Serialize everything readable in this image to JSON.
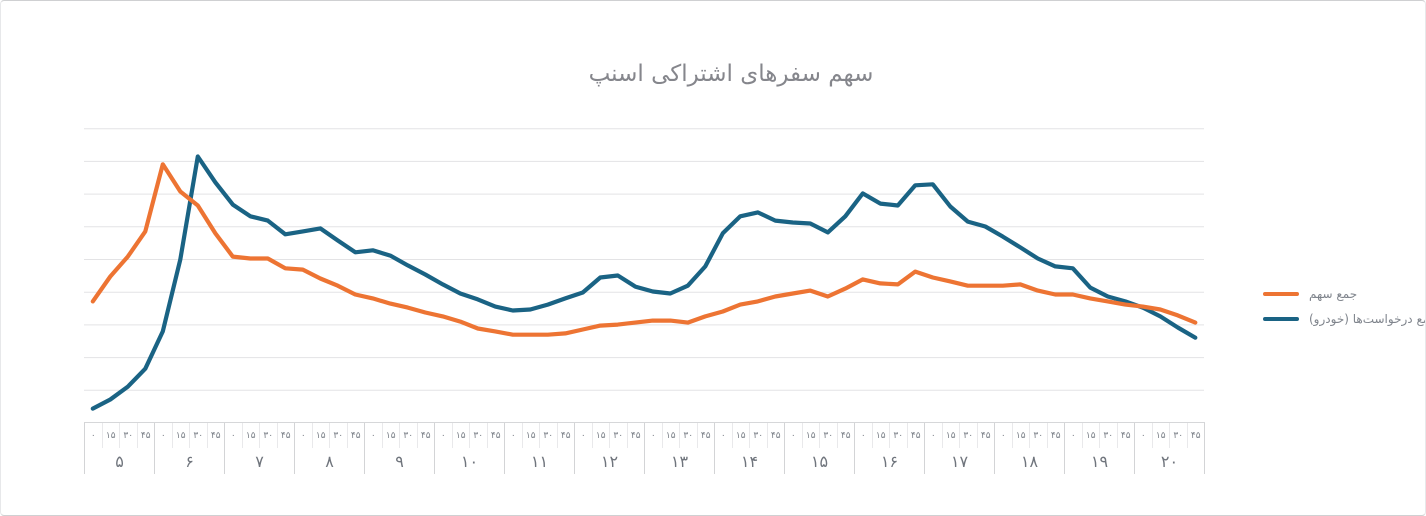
{
  "card": {
    "title": "سهم سفرهای اشتراکی اسنپ"
  },
  "legend": {
    "items": [
      {
        "label": "جمع سهم",
        "color": "#ed7433",
        "series": "share"
      },
      {
        "label": "جمع درخواست‌ها (خودرو)",
        "color": "#1a6384",
        "series": "requests"
      }
    ]
  },
  "colors": {
    "share_line": "#ed7433",
    "requests_line": "#1a6384",
    "gridline": "#e3e3e5",
    "title_text": "#85868c",
    "axis_text": "#70757d"
  },
  "chart_data": {
    "type": "line",
    "title": "سهم سفرهای اشتراکی اسنپ",
    "xlabel": "",
    "ylabel": "",
    "y_axis_labels_visible": false,
    "ylim": [
      0,
      100
    ],
    "gridlines": [
      10,
      20,
      30,
      40,
      50,
      60,
      70,
      80,
      90
    ],
    "legend_position": "right",
    "x_axis": {
      "hours": [
        "۵",
        "۶",
        "۷",
        "۸",
        "۹",
        "۱۰",
        "۱۱",
        "۱۲",
        "۱۳",
        "۱۴",
        "۱۵",
        "۱۶",
        "۱۷",
        "۱۸",
        "۱۹",
        "۲۰"
      ],
      "minutes": [
        "۰",
        "۱۵",
        "۳۰",
        "۴۵"
      ]
    },
    "series": [
      {
        "name": "جمع سهم",
        "color": "#ed7433",
        "values": [
          37.2,
          44.8,
          50.9,
          58.6,
          79.1,
          70.8,
          66.5,
          58.0,
          50.9,
          50.3,
          50.3,
          47.3,
          46.9,
          44.2,
          42.0,
          39.3,
          38.1,
          36.5,
          35.3,
          33.8,
          32.6,
          31.0,
          28.9,
          28.0,
          27.0,
          27.0,
          27.0,
          27.4,
          28.6,
          29.8,
          30.1,
          30.7,
          31.3,
          31.3,
          30.7,
          32.6,
          34.1,
          36.2,
          37.2,
          38.7,
          39.6,
          40.5,
          38.7,
          41.1,
          43.9,
          42.7,
          42.4,
          46.3,
          44.5,
          43.3,
          42.0,
          42.0,
          42.0,
          42.4,
          40.5,
          39.3,
          39.3,
          38.1,
          37.2,
          36.2,
          35.6,
          34.7,
          32.9,
          30.7
        ]
      },
      {
        "name": "جمع درخواست‌ها (خودرو)",
        "color": "#1a6384",
        "values": [
          4.4,
          7.2,
          11.1,
          16.6,
          28.0,
          50.0,
          81.5,
          73.6,
          66.8,
          63.2,
          61.9,
          57.7,
          58.6,
          59.5,
          55.8,
          52.2,
          52.8,
          51.2,
          48.2,
          45.4,
          42.4,
          39.6,
          37.8,
          35.6,
          34.4,
          34.7,
          36.2,
          38.1,
          39.9,
          44.5,
          45.1,
          41.7,
          40.2,
          39.6,
          42.0,
          47.9,
          58.0,
          63.2,
          64.4,
          61.9,
          61.3,
          61.0,
          58.3,
          63.2,
          70.2,
          67.1,
          66.5,
          72.7,
          73.0,
          66.2,
          61.6,
          60.1,
          57.0,
          53.7,
          50.3,
          47.9,
          47.3,
          41.4,
          38.7,
          37.2,
          35.3,
          32.6,
          29.2,
          26.1
        ]
      }
    ]
  }
}
